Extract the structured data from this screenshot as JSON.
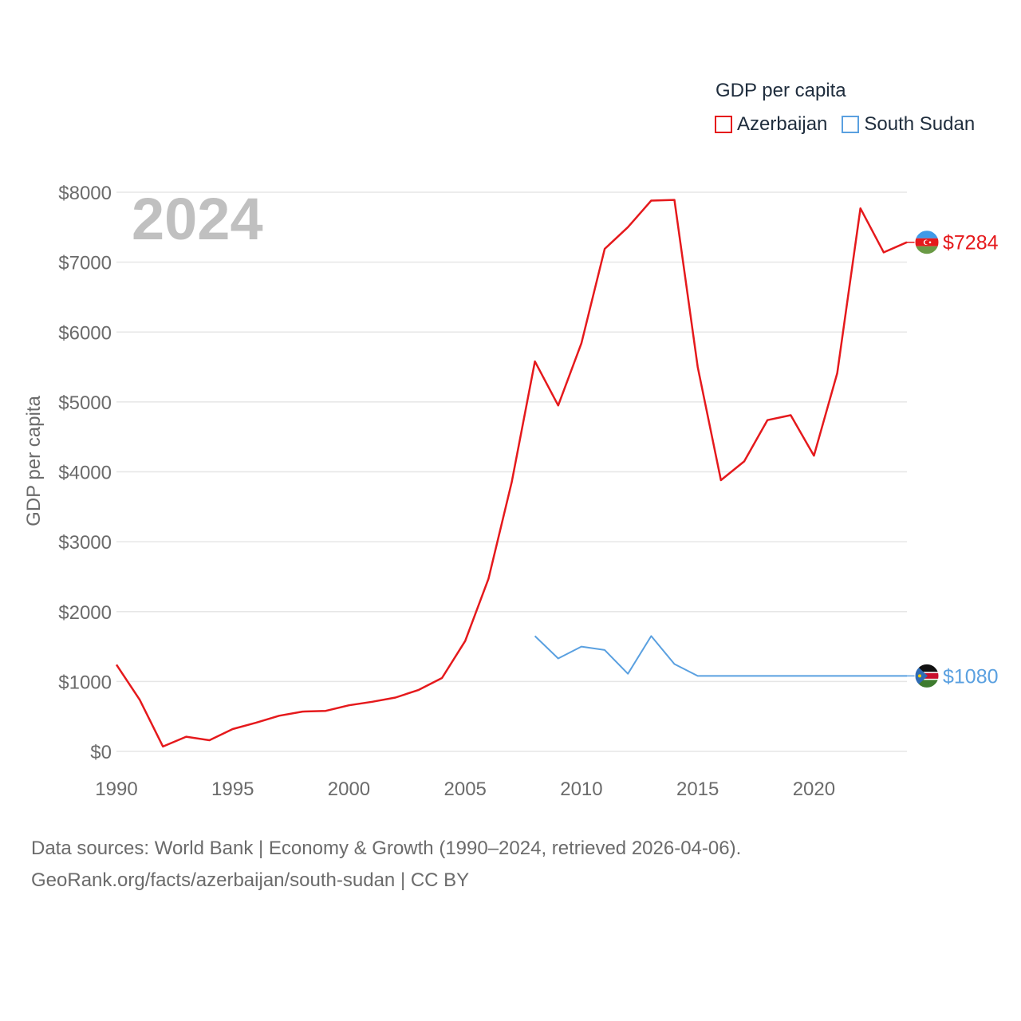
{
  "legend": {
    "title": "GDP per capita",
    "items": [
      {
        "name": "Azerbaijan",
        "color": "#e5191c"
      },
      {
        "name": "South Sudan",
        "color": "#5aa0e0"
      }
    ]
  },
  "footer": {
    "line1": "Data sources: World Bank | Economy & Growth (1990–2024, retrieved 2026-04-06).",
    "line2": "GeoRank.org/facts/azerbaijan/south-sudan | CC BY"
  },
  "chart_data": {
    "type": "line",
    "title": "GDP per capita",
    "ylabel": "GDP per capita",
    "xlabel": "",
    "year_label": "2024",
    "xlim": [
      1990,
      2024
    ],
    "ylim": [
      0,
      8000
    ],
    "x_ticks": [
      1990,
      1995,
      2000,
      2005,
      2010,
      2015,
      2020
    ],
    "y_ticks": [
      0,
      1000,
      2000,
      3000,
      4000,
      5000,
      6000,
      7000,
      8000
    ],
    "y_tick_labels": [
      "$0",
      "$1000",
      "$2000",
      "$3000",
      "$4000",
      "$5000",
      "$6000",
      "$7000",
      "$8000"
    ],
    "grid": true,
    "series": [
      {
        "name": "Azerbaijan",
        "color": "#e5191c",
        "end_label": "$7284",
        "flag": "azerbaijan",
        "x": [
          1990,
          1991,
          1992,
          1993,
          1994,
          1995,
          1996,
          1997,
          1998,
          1999,
          2000,
          2001,
          2002,
          2003,
          2004,
          2005,
          2006,
          2007,
          2008,
          2009,
          2010,
          2011,
          2012,
          2013,
          2014,
          2015,
          2016,
          2017,
          2018,
          2019,
          2020,
          2021,
          2022,
          2023,
          2024
        ],
        "values": [
          1240,
          740,
          70,
          210,
          160,
          320,
          410,
          510,
          570,
          580,
          660,
          710,
          770,
          880,
          1050,
          1580,
          2470,
          3850,
          5580,
          4950,
          5840,
          7190,
          7500,
          7880,
          7890,
          5500,
          3880,
          4150,
          4740,
          4810,
          4230,
          5410,
          7770,
          7140,
          7284
        ]
      },
      {
        "name": "South Sudan",
        "color": "#5aa0e0",
        "end_label": "$1080",
        "flag": "south-sudan",
        "x": [
          2008,
          2009,
          2010,
          2011,
          2012,
          2013,
          2014,
          2015,
          2016,
          2017,
          2018,
          2019,
          2020,
          2021,
          2022,
          2023,
          2024
        ],
        "values": [
          1650,
          1330,
          1500,
          1450,
          1110,
          1650,
          1250,
          1080,
          1080,
          1080,
          1080,
          1080,
          1080,
          1080,
          1080,
          1080,
          1080
        ]
      }
    ]
  }
}
